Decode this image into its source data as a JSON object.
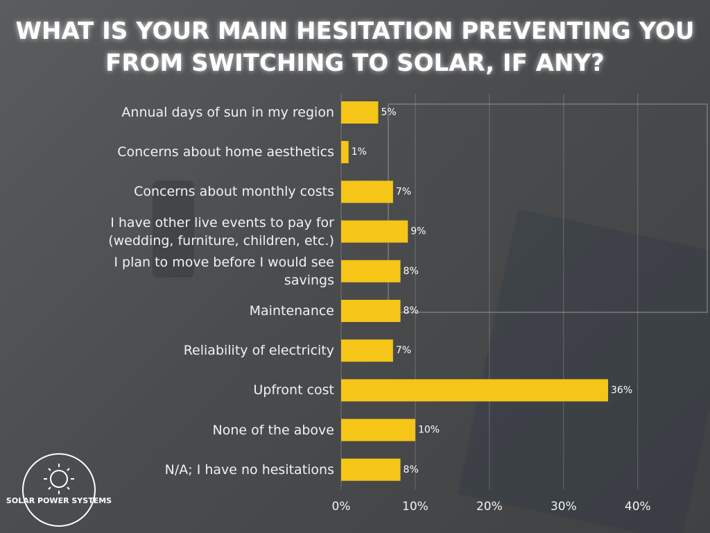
{
  "chart_data": {
    "type": "bar",
    "orientation": "horizontal",
    "title": "WHAT IS YOUR MAIN HESITATION PREVENTING YOU FROM SWITCHING TO SOLAR, IF ANY?",
    "categories": [
      "Annual days of sun in my region",
      "Concerns about home aesthetics",
      "Concerns about monthly costs",
      "I have other live events to pay for (wedding, furniture, children, etc.)",
      "I plan to move before I would see savings",
      "Maintenance",
      "Reliability of electricity",
      "Upfront cost",
      "None of the above",
      "N/A; I have no hesitations"
    ],
    "values": [
      5,
      1,
      7,
      9,
      8,
      8,
      7,
      36,
      10,
      8
    ],
    "value_labels": [
      "5%",
      "1%",
      "7%",
      "9%",
      "8%",
      "8%",
      "7%",
      "36%",
      "10%",
      "8%"
    ],
    "color": "#f5c518",
    "xlim": [
      0,
      47.5
    ],
    "xticks": [
      {
        "value": 0,
        "label": "0%"
      },
      {
        "value": 10,
        "label": "10%"
      },
      {
        "value": 20,
        "label": "20%"
      },
      {
        "value": 30,
        "label": "30%"
      },
      {
        "value": 40,
        "label": "40%"
      }
    ],
    "grid": true
  },
  "logo_text": "SOLAR POWER SYSTEMS"
}
